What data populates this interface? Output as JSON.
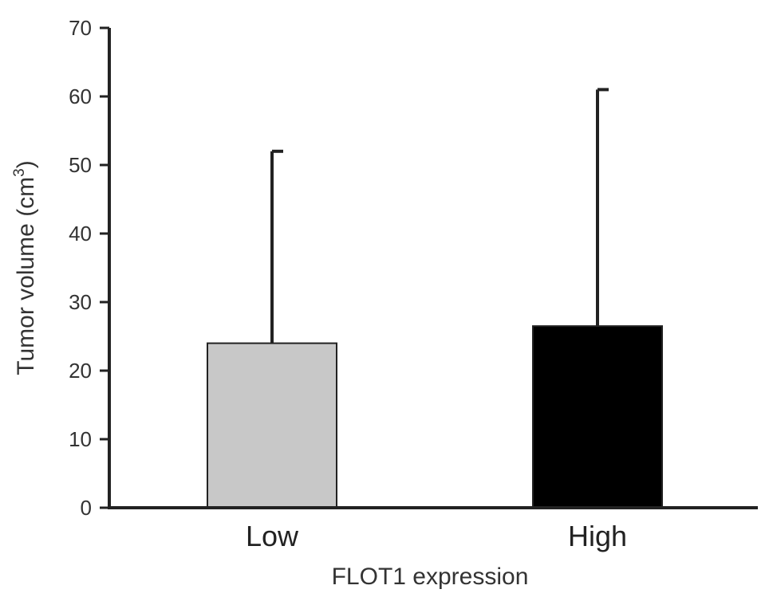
{
  "chart_data": {
    "type": "bar",
    "categories": [
      "Low",
      "High"
    ],
    "values": [
      24,
      26.5
    ],
    "error_upper": [
      52,
      61
    ],
    "bar_colors": [
      "#c8c8c8",
      "#000000"
    ],
    "xlabel": "FLOT1 expression",
    "ylabel": "Tumor volume (cm",
    "ylabel_sup": "3",
    "ylabel_close": ")",
    "ylim": [
      0,
      70
    ],
    "yticks": [
      "0",
      "10",
      "20",
      "30",
      "40",
      "50",
      "60",
      "70"
    ],
    "grid": false
  }
}
